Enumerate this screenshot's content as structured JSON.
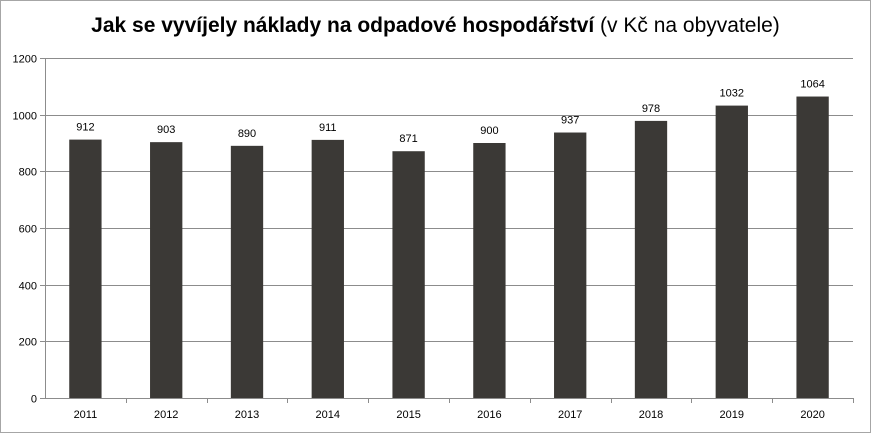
{
  "chart_data": {
    "type": "bar",
    "title_bold": "Jak se vyvíjely náklady na odpadové hospodářství",
    "title_rest": " (v Kč na obyvatele)",
    "categories": [
      "2011",
      "2012",
      "2013",
      "2014",
      "2015",
      "2016",
      "2017",
      "2018",
      "2019",
      "2020"
    ],
    "values": [
      912,
      903,
      890,
      911,
      871,
      900,
      937,
      978,
      1032,
      1064
    ],
    "ylim": [
      0,
      1200
    ],
    "yticks": [
      0,
      200,
      400,
      600,
      800,
      1000,
      1200
    ],
    "grid": true,
    "legend": false,
    "bar_color": "#3b3936",
    "grid_color": "#8c8c8c"
  }
}
